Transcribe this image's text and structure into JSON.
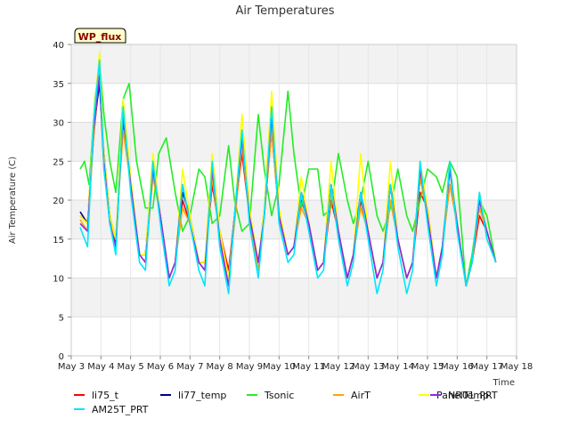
{
  "chart_data": {
    "type": "line",
    "title": "Air Temperatures",
    "xlabel": "Time",
    "ylabel": "Air Temperature (C)",
    "ylim": [
      0,
      40
    ],
    "yticks": [
      0,
      5,
      10,
      15,
      20,
      25,
      30,
      35,
      40
    ],
    "xlim": [
      0,
      15
    ],
    "xticks": [
      {
        "x": 0,
        "label": "May 3"
      },
      {
        "x": 1,
        "label": "May 4"
      },
      {
        "x": 2,
        "label": "May 5"
      },
      {
        "x": 3,
        "label": "May 6"
      },
      {
        "x": 4,
        "label": "May 7"
      },
      {
        "x": 5,
        "label": "May 8"
      },
      {
        "x": 6,
        "label": "May 9"
      },
      {
        "x": 7,
        "label": "May 10"
      },
      {
        "x": 8,
        "label": "May 11"
      },
      {
        "x": 9,
        "label": "May 12"
      },
      {
        "x": 10,
        "label": "May 13"
      },
      {
        "x": 11,
        "label": "May 14"
      },
      {
        "x": 12,
        "label": "May 15"
      },
      {
        "x": 13,
        "label": "May 16"
      },
      {
        "x": 14,
        "label": "May 17"
      },
      {
        "x": 15,
        "label": "May 18"
      }
    ],
    "grid": true,
    "background_bands": true,
    "legend_placement": "bottom",
    "badge": "WP_flux",
    "series": [
      {
        "name": "li75_t",
        "color": "#ff0000",
        "x": [
          0.3,
          0.55,
          0.75,
          0.95,
          1.1,
          1.3,
          1.5,
          1.75,
          2.0,
          2.3,
          2.5,
          2.75,
          3.0,
          3.3,
          3.5,
          3.75,
          4.0,
          4.3,
          4.5,
          4.75,
          5.0,
          5.3,
          5.5,
          5.75,
          6.0,
          6.3,
          6.5,
          6.75,
          7.0,
          7.3,
          7.5,
          7.75,
          8.0,
          8.3,
          8.5,
          8.75,
          9.0,
          9.3,
          9.5,
          9.75,
          10.0,
          10.3,
          10.5,
          10.75,
          11.0,
          11.3,
          11.5,
          11.75,
          12.0,
          12.3,
          12.5,
          12.75,
          13.0,
          13.3,
          13.5,
          13.75,
          14.0,
          14.3
        ],
        "y": [
          18,
          17,
          28,
          36,
          24,
          18,
          15,
          30,
          22,
          13,
          13,
          24,
          18,
          10,
          12,
          20,
          17,
          12,
          12,
          22,
          16,
          11,
          18,
          26,
          18,
          12,
          18,
          29,
          18,
          13,
          14,
          20,
          17,
          11,
          12,
          20,
          16,
          10,
          13,
          20,
          16,
          10,
          12,
          20,
          15,
          10,
          12,
          21,
          19,
          10,
          14,
          22,
          17,
          9,
          12,
          18,
          16,
          12
        ]
      },
      {
        "name": "li77_temp",
        "color": "#00008b",
        "x": [
          0.3,
          0.55,
          0.75,
          0.95,
          1.1,
          1.3,
          1.5,
          1.75,
          2.0,
          2.3,
          2.5,
          2.75,
          3.0,
          3.3,
          3.5,
          3.75,
          4.0,
          4.3,
          4.5,
          4.75,
          5.0,
          5.3,
          5.5,
          5.75,
          6.0,
          6.3,
          6.5,
          6.75,
          7.0,
          7.3,
          7.5,
          7.75,
          8.0,
          8.3,
          8.5,
          8.75,
          9.0,
          9.3,
          9.5,
          9.75,
          10.0,
          10.3,
          10.5,
          10.75,
          11.0,
          11.3,
          11.5,
          11.75,
          12.0,
          12.3,
          12.5,
          12.75,
          13.0,
          13.3,
          13.5,
          13.75,
          14.0,
          14.3
        ],
        "y": [
          18.5,
          17,
          29,
          35,
          26,
          18,
          14,
          31,
          22,
          13,
          13,
          25,
          18,
          10,
          12,
          21,
          18,
          12,
          11,
          24,
          15,
          10,
          18,
          29,
          18,
          12,
          18,
          31,
          18,
          13,
          14,
          21,
          17,
          11,
          12,
          22,
          16,
          10,
          13,
          21,
          16,
          10,
          12,
          22,
          15,
          10,
          12,
          23,
          18,
          10,
          14,
          24,
          17,
          9,
          12,
          20,
          16,
          12
        ]
      },
      {
        "name": "Tsonic",
        "color": "#22ee22",
        "x": [
          0.3,
          0.45,
          0.6,
          0.8,
          0.95,
          1.1,
          1.3,
          1.5,
          1.75,
          1.95,
          2.2,
          2.5,
          2.75,
          2.95,
          3.2,
          3.5,
          3.75,
          4.0,
          4.3,
          4.5,
          4.75,
          5.0,
          5.3,
          5.5,
          5.75,
          6.0,
          6.3,
          6.5,
          6.75,
          7.0,
          7.3,
          7.5,
          7.75,
          8.0,
          8.3,
          8.5,
          8.75,
          9.0,
          9.3,
          9.5,
          9.75,
          10.0,
          10.3,
          10.5,
          10.75,
          11.0,
          11.3,
          11.5,
          11.75,
          12.0,
          12.3,
          12.5,
          12.75,
          13.0,
          13.3,
          13.5,
          13.75,
          14.0,
          14.3
        ],
        "y": [
          24,
          25,
          22,
          33,
          38,
          31,
          25,
          21,
          33,
          35,
          25,
          19,
          19,
          26,
          28,
          21,
          16,
          18,
          24,
          23,
          17,
          18,
          27,
          20,
          16,
          17,
          31,
          24,
          18,
          22,
          34,
          26,
          19,
          24,
          24,
          18,
          19,
          26,
          20,
          17,
          20,
          25,
          18,
          16,
          19,
          24,
          18,
          16,
          20,
          24,
          23,
          21,
          25,
          23,
          9,
          13,
          20,
          18,
          12
        ]
      },
      {
        "name": "AirT",
        "color": "#ffa500",
        "x": [
          0.3,
          0.55,
          0.75,
          0.95,
          1.1,
          1.3,
          1.5,
          1.75,
          2.0,
          2.3,
          2.5,
          2.75,
          3.0,
          3.3,
          3.5,
          3.75,
          4.0,
          4.3,
          4.5,
          4.75,
          5.0,
          5.3,
          5.5,
          5.75,
          6.0,
          6.3,
          6.5,
          6.75,
          7.0,
          7.3,
          7.5,
          7.75,
          8.0,
          8.3,
          8.5,
          8.75,
          9.0,
          9.3,
          9.5,
          9.75,
          10.0,
          10.3,
          10.5,
          10.75,
          11.0,
          11.3,
          11.5,
          11.75,
          12.0,
          12.3,
          12.5,
          12.75,
          13.0,
          13.3,
          13.5,
          13.75,
          14.0,
          14.3
        ],
        "y": [
          17.5,
          16,
          28,
          37,
          25,
          17,
          15,
          29,
          22,
          13,
          12,
          23,
          18,
          10,
          12,
          19,
          17,
          12,
          11,
          23,
          15,
          10,
          17,
          27,
          18,
          11,
          18,
          29,
          18,
          13,
          14,
          19,
          17,
          11,
          12,
          21,
          16,
          10,
          13,
          19,
          16,
          10,
          12,
          20,
          15,
          10,
          12,
          23,
          18,
          10,
          14,
          22,
          17,
          9,
          12,
          19,
          16,
          12
        ]
      },
      {
        "name": "PanelTemp",
        "color": "#ffff00",
        "x": [
          0.3,
          0.55,
          0.75,
          0.95,
          1.1,
          1.3,
          1.5,
          1.75,
          2.0,
          2.3,
          2.5,
          2.75,
          3.0,
          3.3,
          3.5,
          3.75,
          4.0,
          4.3,
          4.5,
          4.75,
          5.0,
          5.3,
          5.5,
          5.75,
          6.0,
          6.3,
          6.5,
          6.75,
          7.0,
          7.3,
          7.5,
          7.75,
          8.0,
          8.3,
          8.5,
          8.75,
          9.0,
          9.3,
          9.5,
          9.75,
          10.0,
          10.3,
          10.5,
          10.75,
          11.0,
          11.3,
          11.5,
          11.75,
          12.0,
          12.3,
          12.5,
          12.75,
          13.0,
          13.3,
          13.5,
          13.75,
          14.0,
          14.3
        ],
        "y": [
          18,
          17,
          30,
          39,
          26,
          18,
          15,
          33,
          23,
          13,
          13,
          26,
          18,
          10,
          12,
          24,
          18,
          12,
          12,
          26,
          16,
          10,
          18,
          31,
          19,
          12,
          19,
          34,
          19,
          13,
          14,
          23,
          17,
          11,
          12,
          25,
          16,
          10,
          13,
          26,
          16,
          10,
          12,
          25,
          15,
          10,
          12,
          25,
          19,
          10,
          14,
          25,
          17,
          9,
          12,
          21,
          16,
          12
        ]
      },
      {
        "name": "NR01_PRT",
        "color": "#8a2be2",
        "x": [
          0.3,
          0.55,
          0.75,
          0.95,
          1.1,
          1.3,
          1.5,
          1.75,
          2.0,
          2.3,
          2.5,
          2.75,
          3.0,
          3.3,
          3.5,
          3.75,
          4.0,
          4.3,
          4.5,
          4.75,
          5.0,
          5.3,
          5.5,
          5.75,
          6.0,
          6.3,
          6.5,
          6.75,
          7.0,
          7.3,
          7.5,
          7.75,
          8.0,
          8.3,
          8.5,
          8.75,
          9.0,
          9.3,
          9.5,
          9.75,
          10.0,
          10.3,
          10.5,
          10.75,
          11.0,
          11.3,
          11.5,
          11.75,
          12.0,
          12.3,
          12.5,
          12.75,
          13.0,
          13.3,
          13.5,
          13.75,
          14.0,
          14.3
        ],
        "y": [
          17,
          16,
          29,
          36,
          25,
          17,
          14,
          31,
          22,
          13,
          12,
          24,
          18,
          10,
          12,
          22,
          17,
          12,
          11,
          24,
          15,
          9,
          18,
          28,
          18,
          12,
          18,
          31,
          18,
          13,
          14,
          21,
          17,
          11,
          12,
          22,
          16,
          10,
          13,
          21,
          16,
          10,
          12,
          22,
          15,
          10,
          12,
          24,
          18,
          10,
          14,
          24,
          17,
          9,
          12,
          20,
          16,
          12
        ]
      },
      {
        "name": "AM25T_PRT",
        "color": "#00e5ff",
        "x": [
          0.3,
          0.55,
          0.75,
          0.95,
          1.1,
          1.3,
          1.5,
          1.75,
          2.0,
          2.3,
          2.5,
          2.75,
          3.0,
          3.3,
          3.5,
          3.75,
          4.0,
          4.3,
          4.5,
          4.75,
          5.0,
          5.3,
          5.5,
          5.75,
          6.0,
          6.3,
          6.5,
          6.75,
          7.0,
          7.3,
          7.5,
          7.75,
          8.0,
          8.3,
          8.5,
          8.75,
          9.0,
          9.3,
          9.5,
          9.75,
          10.0,
          10.3,
          10.5,
          10.75,
          11.0,
          11.3,
          11.5,
          11.75,
          12.0,
          12.3,
          12.5,
          12.75,
          13.0,
          13.3,
          13.5,
          13.75,
          14.0,
          14.3
        ],
        "y": [
          16.5,
          14,
          30,
          38,
          24,
          17,
          13,
          32,
          21,
          12,
          11,
          25,
          17,
          9,
          11,
          22,
          17,
          11,
          9,
          25,
          14,
          8,
          18,
          29,
          17,
          10,
          18,
          32,
          17,
          12,
          13,
          21,
          16,
          10,
          11,
          22,
          15,
          9,
          12,
          21,
          15,
          8,
          11,
          22,
          14,
          8,
          11,
          25,
          17,
          9,
          13,
          25,
          16,
          9,
          12,
          21,
          15,
          12
        ]
      }
    ]
  }
}
